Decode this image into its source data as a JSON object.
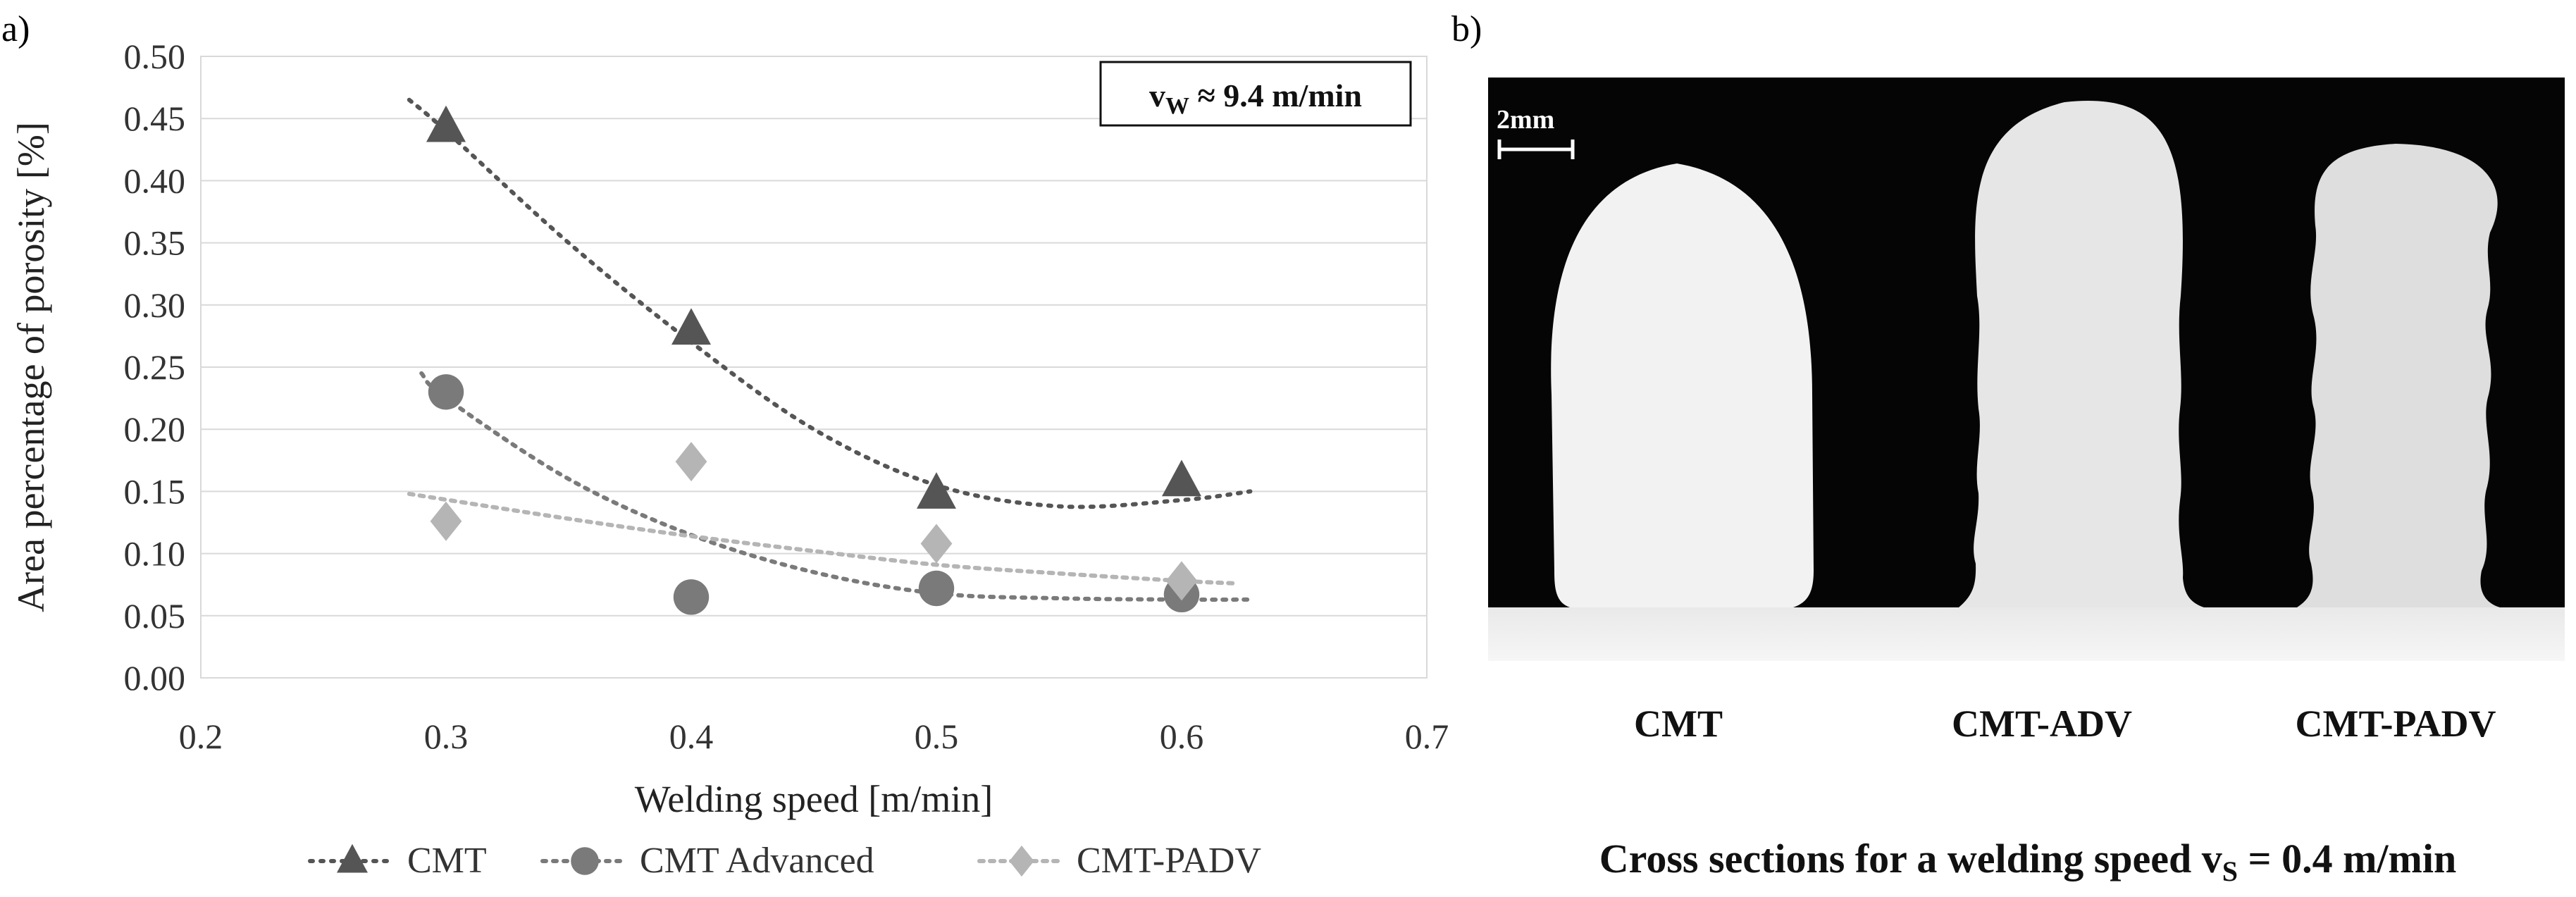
{
  "panels": {
    "a_label": "a)",
    "b_label": "b)"
  },
  "chart_data": {
    "type": "scatter",
    "title": "",
    "xlabel": "Welding speed [m/min]",
    "ylabel": "Area percentage of porosity [%]",
    "xlim": [
      0.2,
      0.7
    ],
    "ylim": [
      0.0,
      0.5
    ],
    "x_ticks": [
      "0.2",
      "0.3",
      "0.4",
      "0.5",
      "0.6",
      "0.7"
    ],
    "y_ticks": [
      "0.00",
      "0.05",
      "0.10",
      "0.15",
      "0.20",
      "0.25",
      "0.30",
      "0.35",
      "0.40",
      "0.45",
      "0.50"
    ],
    "grid": "horizontal",
    "legend_position": "bottom",
    "annotation": {
      "main": "v",
      "sub": "W",
      "rest": " ≈ 9.4 m/min"
    },
    "series": [
      {
        "name": "CMT",
        "marker": "triangle",
        "color": "#555555",
        "x": [
          0.3,
          0.4,
          0.5,
          0.6
        ],
        "y": [
          0.443,
          0.28,
          0.148,
          0.158
        ],
        "trend_x": [
          0.285,
          0.3,
          0.35,
          0.4,
          0.45,
          0.5,
          0.55,
          0.6,
          0.628
        ],
        "trend_y": [
          0.465,
          0.44,
          0.35,
          0.27,
          0.2,
          0.155,
          0.138,
          0.143,
          0.15
        ]
      },
      {
        "name": "CMT Advanced",
        "marker": "circle",
        "color": "#7a7a7a",
        "x": [
          0.3,
          0.4,
          0.5,
          0.6
        ],
        "y": [
          0.23,
          0.065,
          0.072,
          0.067
        ],
        "trend_x": [
          0.29,
          0.3,
          0.35,
          0.4,
          0.45,
          0.5,
          0.55,
          0.6,
          0.628
        ],
        "trend_y": [
          0.245,
          0.225,
          0.16,
          0.115,
          0.085,
          0.068,
          0.064,
          0.063,
          0.063
        ]
      },
      {
        "name": "CMT-PADV",
        "marker": "diamond",
        "color": "#b5b5b5",
        "x": [
          0.3,
          0.4,
          0.5,
          0.6
        ],
        "y": [
          0.126,
          0.174,
          0.108,
          0.078
        ],
        "trend_x": [
          0.285,
          0.35,
          0.4,
          0.45,
          0.5,
          0.55,
          0.6,
          0.622
        ],
        "trend_y": [
          0.148,
          0.128,
          0.114,
          0.102,
          0.091,
          0.084,
          0.078,
          0.076
        ]
      }
    ]
  },
  "cross_sections": {
    "scale_bar": "2mm",
    "labels": [
      "CMT",
      "CMT-ADV",
      "CMT-PADV"
    ],
    "caption": {
      "main": "Cross sections for a welding speed v",
      "sub": "S",
      "rest": " = 0.4 m/min"
    }
  }
}
